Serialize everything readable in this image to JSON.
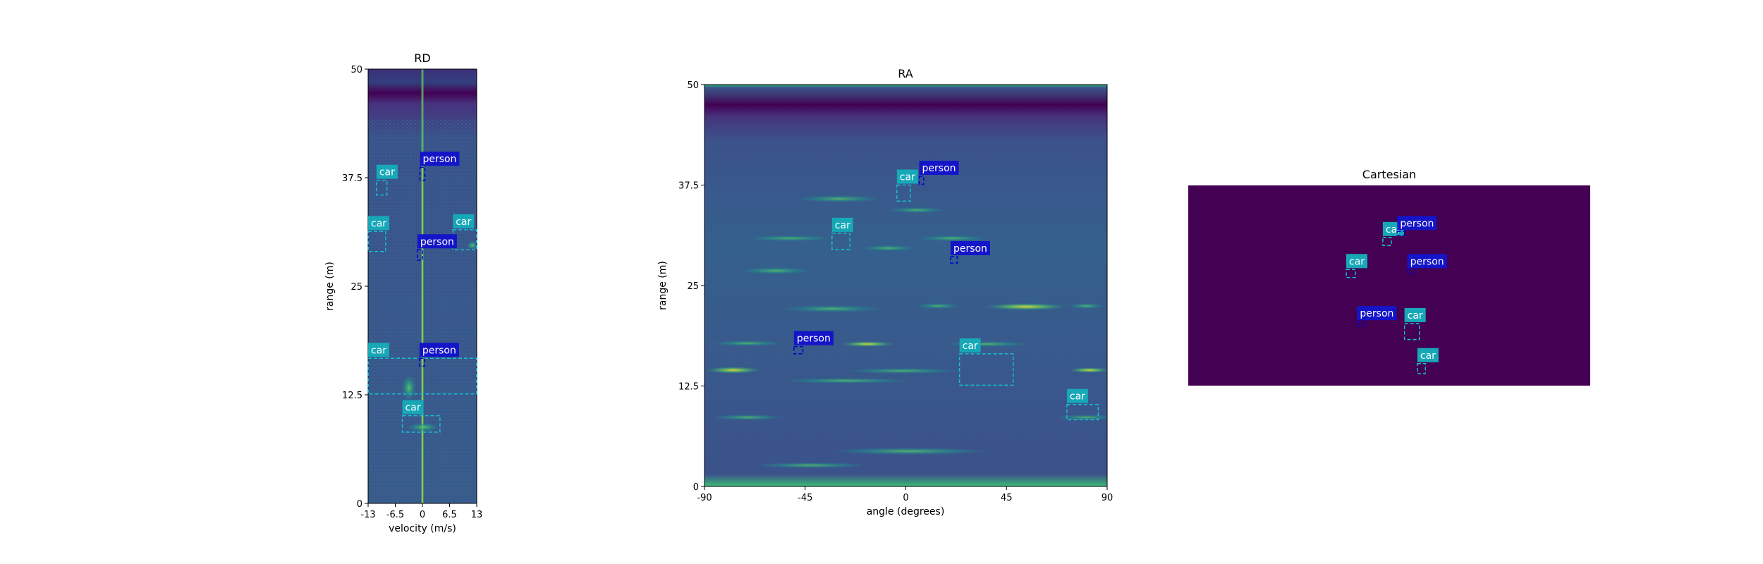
{
  "colors": {
    "box_car": "#17becf",
    "box_person": "#0000cc",
    "label_car_bg": "#17a8b8",
    "label_person_bg": "#1414c8",
    "viridis_dark": "#440154",
    "map_bg": "#3b528b",
    "map_mid": "#21918c",
    "map_hot": "#fde725"
  },
  "chart_data": [
    {
      "type": "heatmap",
      "title": "RD",
      "xlabel": "velocity (m/s)",
      "ylabel": "range (m)",
      "xlim": [
        -13,
        13
      ],
      "ylim": [
        0,
        50
      ],
      "xticks": [
        -13,
        -6.5,
        0,
        6.5,
        13
      ],
      "xtick_labels": [
        "-13",
        "-6.5",
        "0",
        "6.5",
        "13"
      ],
      "yticks": [
        0,
        12.5,
        25,
        37.5,
        50
      ],
      "ytick_labels": [
        "0",
        "12.5",
        "25",
        "37.5",
        "50"
      ],
      "grid": false,
      "detections": [
        {
          "label": "car",
          "x": [
            -11,
            -8.5
          ],
          "y": [
            35.5,
            37.2
          ]
        },
        {
          "label": "person",
          "x": [
            -0.6,
            0.6
          ],
          "y": [
            37.2,
            38.7
          ]
        },
        {
          "label": "car",
          "x": [
            -13,
            -8.8
          ],
          "y": [
            29.0,
            31.3
          ]
        },
        {
          "label": "car",
          "x": [
            7.3,
            13
          ],
          "y": [
            29.2,
            31.5
          ]
        },
        {
          "label": "person",
          "x": [
            -1.2,
            0
          ],
          "y": [
            28.0,
            29.2
          ]
        },
        {
          "label": "car",
          "x": [
            -13,
            13
          ],
          "y": [
            12.6,
            16.7
          ]
        },
        {
          "label": "person",
          "x": [
            -0.7,
            0.5
          ],
          "y": [
            15.8,
            16.7
          ]
        },
        {
          "label": "car",
          "x": [
            -4.8,
            4.2
          ],
          "y": [
            8.2,
            10.1
          ]
        }
      ]
    },
    {
      "type": "heatmap",
      "title": "RA",
      "xlabel": "angle (degrees)",
      "ylabel": "range (m)",
      "xlim": [
        -90,
        90
      ],
      "ylim": [
        0,
        50
      ],
      "xticks": [
        -90,
        -45,
        0,
        45,
        90
      ],
      "xtick_labels": [
        "-90",
        "-45",
        "0",
        "45",
        "90"
      ],
      "yticks": [
        0,
        12.5,
        25,
        37.5,
        50
      ],
      "ytick_labels": [
        "0",
        "12.5",
        "25",
        "37.5",
        "50"
      ],
      "grid": false,
      "detections": [
        {
          "label": "car",
          "x": [
            -4,
            2
          ],
          "y": [
            35.5,
            37.5
          ]
        },
        {
          "label": "person",
          "x": [
            6,
            8
          ],
          "y": [
            37.6,
            38.6
          ]
        },
        {
          "label": "car",
          "x": [
            -33,
            -25
          ],
          "y": [
            29.5,
            31.5
          ]
        },
        {
          "label": "person",
          "x": [
            20,
            23
          ],
          "y": [
            27.8,
            28.6
          ]
        },
        {
          "label": "car",
          "x": [
            24,
            48
          ],
          "y": [
            12.6,
            16.5
          ]
        },
        {
          "label": "person",
          "x": [
            -50,
            -46
          ],
          "y": [
            16.5,
            17.4
          ]
        },
        {
          "label": "car",
          "x": [
            72,
            86
          ],
          "y": [
            8.3,
            10.2
          ]
        }
      ]
    },
    {
      "type": "heatmap",
      "title": "Cartesian",
      "grid": false,
      "axes_visible": false,
      "detections": [
        {
          "label": "car",
          "x": [
            0.484,
            0.505
          ],
          "y": [
            0.7,
            0.74
          ]
        },
        {
          "label": "person",
          "x": [
            0.52,
            0.54
          ],
          "y": [
            0.75,
            0.77
          ]
        },
        {
          "label": "car",
          "x": [
            0.393,
            0.416
          ],
          "y": [
            0.54,
            0.58
          ]
        },
        {
          "label": "person",
          "x": [
            0.545,
            0.565
          ],
          "y": [
            0.56,
            0.58
          ]
        },
        {
          "label": "person",
          "x": [
            0.42,
            0.44
          ],
          "y": [
            0.3,
            0.32
          ]
        },
        {
          "label": "car",
          "x": [
            0.538,
            0.575
          ],
          "y": [
            0.23,
            0.31
          ]
        },
        {
          "label": "car",
          "x": [
            0.57,
            0.59
          ],
          "y": [
            0.06,
            0.11
          ]
        }
      ]
    }
  ]
}
